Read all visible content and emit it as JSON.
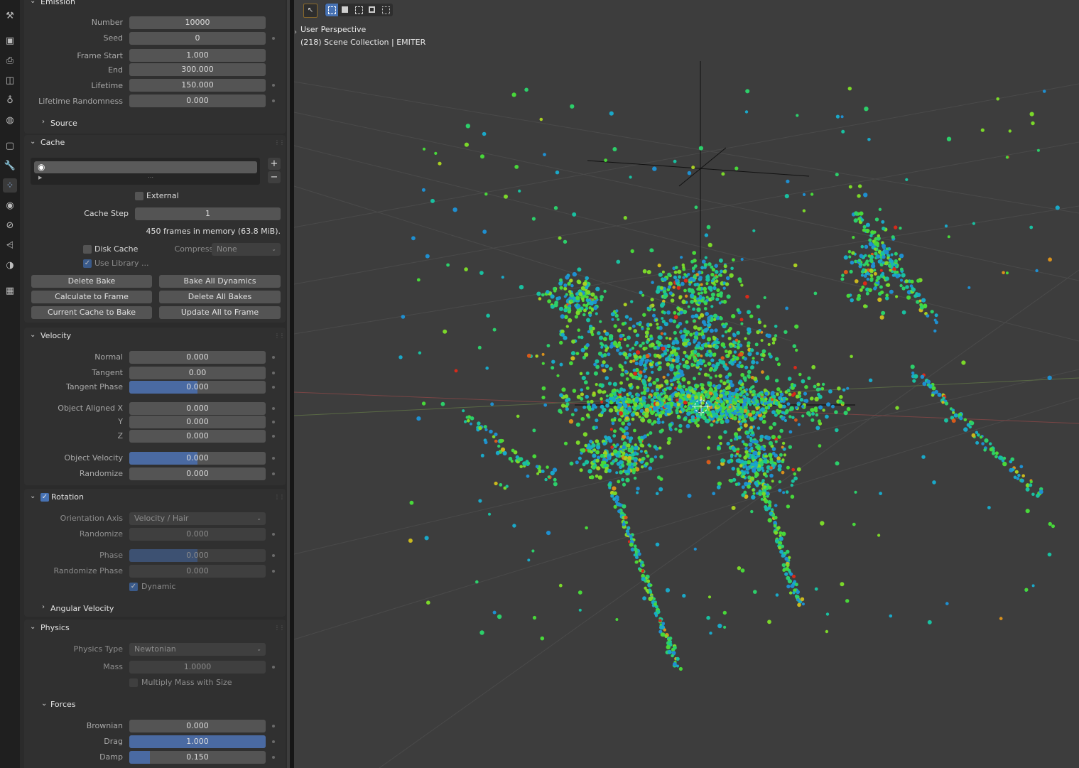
{
  "side_tabs": [
    {
      "name": "tool-icon",
      "glyph": "⚒"
    },
    {
      "name": "render-icon",
      "glyph": "▣"
    },
    {
      "name": "output-icon",
      "glyph": "⎙"
    },
    {
      "name": "view-layer-icon",
      "glyph": "◫"
    },
    {
      "name": "scene-icon",
      "glyph": "♁"
    },
    {
      "name": "world-icon",
      "glyph": "◍"
    },
    {
      "name": "object-icon",
      "glyph": "▢"
    },
    {
      "name": "modifier-icon",
      "glyph": "🔧"
    },
    {
      "name": "particles-icon",
      "glyph": "⁘"
    },
    {
      "name": "physics-icon",
      "glyph": "◉"
    },
    {
      "name": "constraints-icon",
      "glyph": "⊘"
    },
    {
      "name": "data-icon",
      "glyph": "⩤"
    },
    {
      "name": "material-icon",
      "glyph": "◑"
    },
    {
      "name": "texture-icon",
      "glyph": "▦"
    }
  ],
  "emission": {
    "title": "Emission",
    "number_label": "Number",
    "number": "10000",
    "seed_label": "Seed",
    "seed": "0",
    "frame_start_label": "Frame Start",
    "frame_start": "1.000",
    "end_label": "End",
    "end": "300.000",
    "lifetime_label": "Lifetime",
    "lifetime": "150.000",
    "lifetime_rand_label": "Lifetime Randomness",
    "lifetime_rand": "0.000",
    "source_label": "Source"
  },
  "cache": {
    "title": "Cache",
    "external_label": "External",
    "cache_step_label": "Cache Step",
    "cache_step": "1",
    "status": "450 frames in memory (63.8 MiB).",
    "disk_cache_label": "Disk Cache",
    "compression_label": "Compression",
    "compression_value": "None",
    "use_library_label": "Use Library ...",
    "buttons": {
      "delete_bake": "Delete Bake",
      "bake_all": "Bake All Dynamics",
      "calc_to_frame": "Calculate to Frame",
      "delete_all": "Delete All Bakes",
      "current_to_bake": "Current Cache to Bake",
      "update_all": "Update All to Frame"
    },
    "plus": "+",
    "minus": "−"
  },
  "velocity": {
    "title": "Velocity",
    "normal_label": "Normal",
    "normal": "0.000",
    "tangent_label": "Tangent",
    "tangent": "0.00",
    "tangent_phase_label": "Tangent Phase",
    "tangent_phase": "0.000",
    "tangent_phase_fill": 0.5,
    "oax_label": "Object Aligned X",
    "oax": "0.000",
    "oay_label": "Y",
    "oay": "0.000",
    "oaz_label": "Z",
    "oaz": "0.000",
    "object_velocity_label": "Object Velocity",
    "object_velocity": "0.000",
    "object_velocity_fill": 0.5,
    "randomize_label": "Randomize",
    "randomize": "0.000"
  },
  "rotation": {
    "title": "Rotation",
    "orientation_label": "Orientation Axis",
    "orientation_value": "Velocity / Hair",
    "randomize_label": "Randomize",
    "randomize": "0.000",
    "phase_label": "Phase",
    "phase": "0.000",
    "phase_fill": 0.5,
    "rand_phase_label": "Randomize Phase",
    "rand_phase": "0.000",
    "dynamic_label": "Dynamic",
    "angular_velocity_label": "Angular Velocity"
  },
  "physics": {
    "title": "Physics",
    "physics_type_label": "Physics Type",
    "physics_type_value": "Newtonian",
    "mass_label": "Mass",
    "mass": "1.0000",
    "multiply_mass_label": "Multiply Mass with Size",
    "forces_label": "Forces",
    "brownian_label": "Brownian",
    "brownian": "0.000",
    "drag_label": "Drag",
    "drag": "1.000",
    "drag_fill": 1.0,
    "damp_label": "Damp",
    "damp": "0.150",
    "damp_fill": 0.15
  },
  "viewport": {
    "perspective": "User Perspective",
    "collection": "(218) Scene Collection | EMITER",
    "colors": {
      "background": "#3d3d3d",
      "grid": "#4a4a4a",
      "red_axis": "#7a4545",
      "green_axis": "#5a6a45"
    }
  }
}
